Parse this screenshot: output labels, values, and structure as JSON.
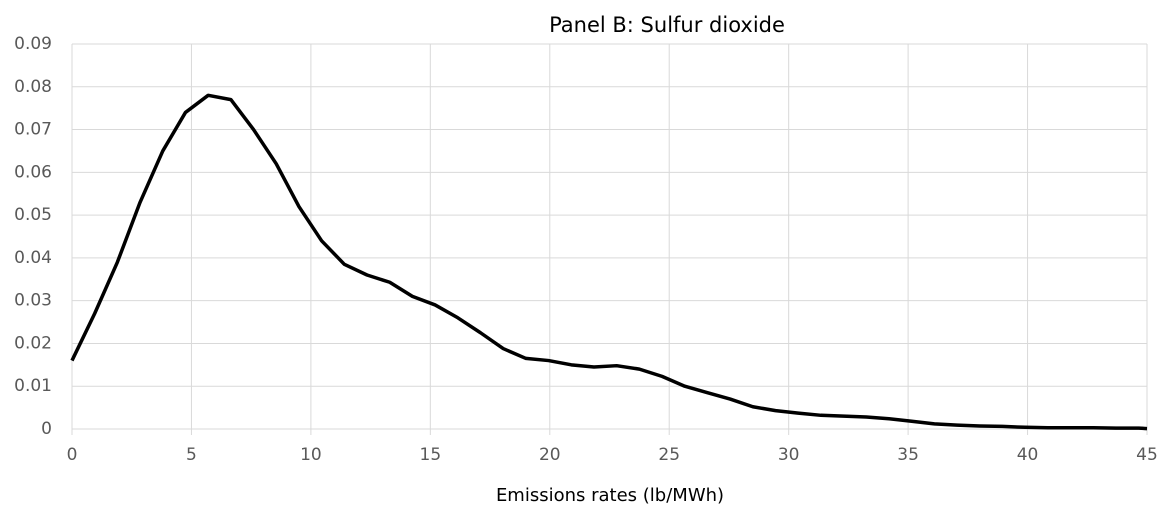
{
  "chart_data": {
    "type": "line",
    "title": "Panel B: Sulfur dioxide",
    "x_label": "Emissions rates (lb/MWh)",
    "x": [
      0,
      0.95,
      1.9,
      2.85,
      3.8,
      4.75,
      5.7,
      6.65,
      7.6,
      8.55,
      9.5,
      10.45,
      11.4,
      12.35,
      13.3,
      14.25,
      15.2,
      16.15,
      17.1,
      18.05,
      19,
      19.95,
      20.9,
      21.85,
      22.8,
      23.75,
      24.7,
      25.65,
      26.6,
      27.55,
      28.5,
      29.45,
      30.4,
      31.35,
      32.3,
      33.25,
      34.2,
      35.15,
      36.1,
      37.05,
      38,
      38.95,
      39.9,
      40.85,
      41.8,
      42.75,
      43.7,
      44.65,
      45
    ],
    "values": [
      0.016,
      0.027,
      0.039,
      0.053,
      0.065,
      0.074,
      0.078,
      0.077,
      0.07,
      0.062,
      0.052,
      0.044,
      0.0385,
      0.036,
      0.0343,
      0.031,
      0.029,
      0.026,
      0.0225,
      0.0188,
      0.0165,
      0.016,
      0.015,
      0.0145,
      0.0148,
      0.014,
      0.0123,
      0.01,
      0.0085,
      0.007,
      0.0052,
      0.0043,
      0.0037,
      0.0032,
      0.003,
      0.0028,
      0.0024,
      0.0018,
      0.0012,
      0.0009,
      0.0007,
      0.0006,
      0.0004,
      0.0003,
      0.0003,
      0.0003,
      0.0002,
      0.0002,
      0.0001
    ],
    "color": "#000000",
    "xlim": [
      0,
      45
    ],
    "xticks": [
      0,
      5,
      10,
      15,
      20,
      25,
      30,
      35,
      40,
      45
    ],
    "ylim": [
      0,
      0.09
    ],
    "yticks": [
      0,
      0.01,
      0.02,
      0.03,
      0.04,
      0.05,
      0.06,
      0.07,
      0.08,
      0.09
    ],
    "grid": true
  }
}
